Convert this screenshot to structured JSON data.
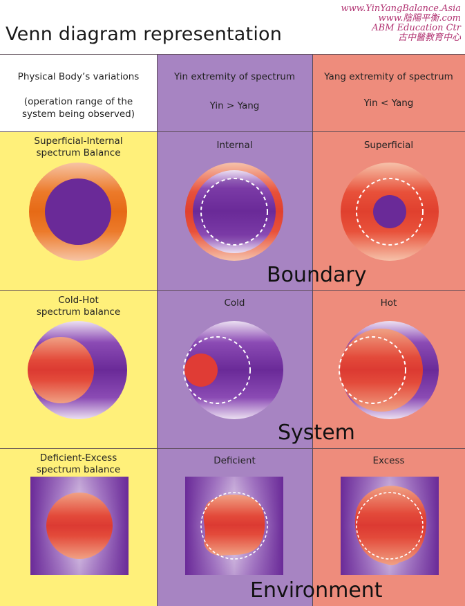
{
  "page": {
    "title": "Venn diagram representation",
    "watermark": [
      "www.YinYangBalance.Asia",
      "www.陰陽平衡.com",
      "ABM Education Ctr",
      "古中醫教育中心"
    ]
  },
  "headers": {
    "col1_line1": "Physical Body’s variations",
    "col1_line2": "(operation range of the",
    "col1_line3": "system being observed)",
    "col2_line1": "Yin extremity of spectrum",
    "col2_line2": "Yin  > Yang",
    "col3_line1": "Yang extremity of spectrum",
    "col3_line2": "Yin  < Yang"
  },
  "rows": [
    {
      "balance_line1": "Superficial-Internal",
      "balance_line2": "spectrum Balance",
      "yin_label": "Internal",
      "yang_label": "Superficial",
      "category": "Boundary"
    },
    {
      "balance_line1": "Cold-Hot",
      "balance_line2": "spectrum balance",
      "yin_label": "Cold",
      "yang_label": "Hot",
      "category": "System"
    },
    {
      "balance_line1": "Deficient-Excess",
      "balance_line2": "spectrum balance",
      "yin_label": "Deficient",
      "yang_label": "Excess",
      "category": "Environment"
    }
  ],
  "colors": {
    "balance_column": "#fff07a",
    "yin_column": "#a784c2",
    "yang_column": "#ee8c7c",
    "yin_purple": "#6a2a98",
    "yang_red": "#e03c35",
    "orange_ring": "#e8701e"
  }
}
